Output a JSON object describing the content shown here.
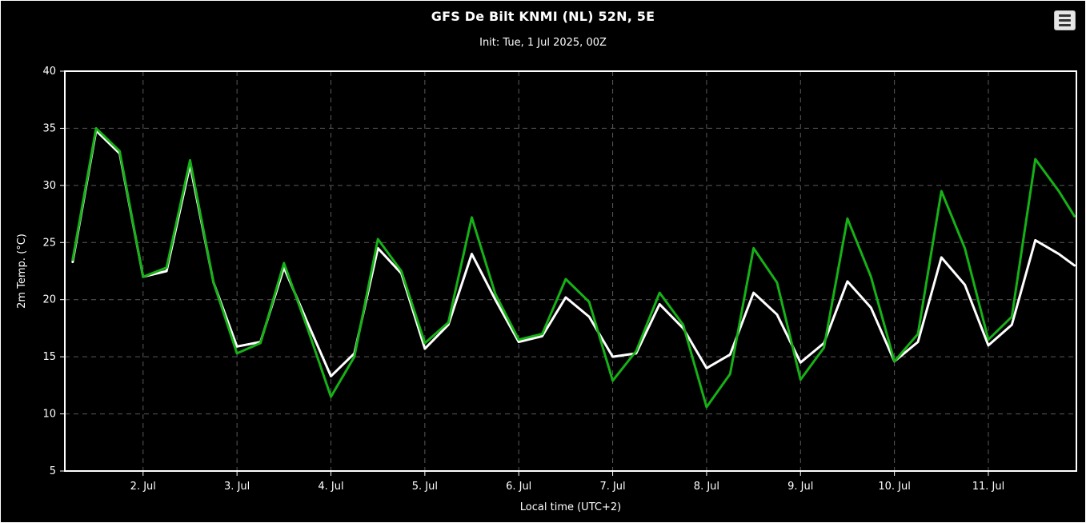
{
  "header": {
    "menu_icon": "hamburger",
    "menu_tooltip": "Chart context menu"
  },
  "chart_data": {
    "type": "line",
    "title": "GFS De Bilt KNMI (NL) 52N, 5E",
    "subtitle": "Init: Tue, 1 Jul 2025, 00Z",
    "xlabel": "Local time (UTC+2)",
    "ylabel": "2m Temp. (°C)",
    "ylim": [
      5,
      40
    ],
    "y_ticks": [
      5,
      10,
      15,
      20,
      25,
      30,
      35,
      40
    ],
    "x_hours_range": [
      4,
      262.5
    ],
    "x_ticks": [
      {
        "hour": 24,
        "label": "2. Jul"
      },
      {
        "hour": 48,
        "label": "3. Jul"
      },
      {
        "hour": 72,
        "label": "4. Jul"
      },
      {
        "hour": 96,
        "label": "5. Jul"
      },
      {
        "hour": 120,
        "label": "6. Jul"
      },
      {
        "hour": 144,
        "label": "7. Jul"
      },
      {
        "hour": 168,
        "label": "8. Jul"
      },
      {
        "hour": 192,
        "label": "9. Jul"
      },
      {
        "hour": 216,
        "label": "10. Jul"
      },
      {
        "hour": 240,
        "label": "11. Jul"
      }
    ],
    "grid": "dashed",
    "legend": "none",
    "colors": {
      "background": "#000000",
      "plot_border": "#ffffff",
      "grid": "#5a5a5a",
      "text": "#ffffff"
    },
    "x_hours": [
      6,
      12,
      18,
      24,
      30,
      36,
      42,
      48,
      54,
      60,
      66,
      72,
      78,
      84,
      90,
      96,
      102,
      108,
      114,
      120,
      126,
      132,
      138,
      144,
      150,
      156,
      162,
      168,
      174,
      180,
      186,
      192,
      198,
      204,
      210,
      216,
      222,
      228,
      234,
      240,
      246,
      252,
      258,
      262
    ],
    "series": [
      {
        "name": "white",
        "color": "#ffffff",
        "values": [
          23.3,
          34.8,
          32.8,
          22.0,
          22.5,
          31.8,
          21.5,
          15.9,
          16.3,
          22.8,
          18.0,
          13.3,
          15.3,
          24.5,
          22.3,
          15.7,
          17.8,
          24.0,
          20.0,
          16.3,
          16.8,
          20.2,
          18.5,
          15.0,
          15.3,
          19.6,
          17.5,
          14.0,
          15.2,
          20.6,
          18.7,
          14.5,
          16.2,
          21.6,
          19.3,
          14.6,
          16.3,
          23.7,
          21.3,
          16.0,
          17.8,
          25.2,
          24.0,
          23.0
        ]
      },
      {
        "name": "green",
        "color": "#16b116",
        "values": [
          23.5,
          35.0,
          33.0,
          22.0,
          22.8,
          32.2,
          21.5,
          15.3,
          16.2,
          23.2,
          17.5,
          11.5,
          15.0,
          25.3,
          22.5,
          16.2,
          18.0,
          27.2,
          20.5,
          16.5,
          17.0,
          21.8,
          19.8,
          12.9,
          15.5,
          20.6,
          17.8,
          10.6,
          13.5,
          24.5,
          21.5,
          13.0,
          15.8,
          27.1,
          22.0,
          14.6,
          17.0,
          29.5,
          24.5,
          16.5,
          18.5,
          32.3,
          29.5,
          27.3
        ]
      }
    ]
  }
}
